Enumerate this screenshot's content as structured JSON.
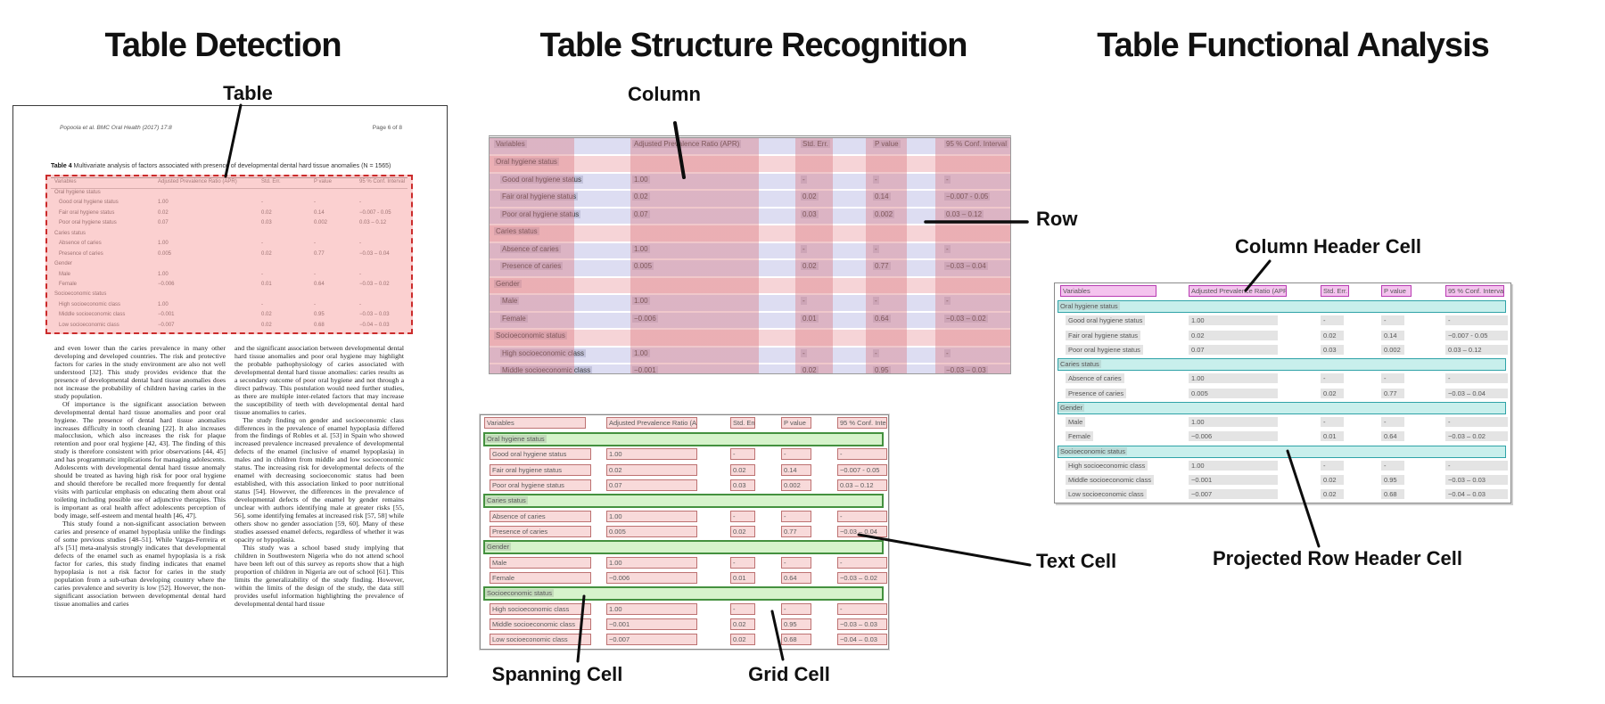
{
  "titles": {
    "detection": "Table Detection",
    "structure": "Table Structure Recognition",
    "functional": "Table Functional Analysis"
  },
  "callouts": {
    "table": "Table",
    "column": "Column",
    "row": "Row",
    "spanning_cell": "Spanning Cell",
    "grid_cell": "Grid Cell",
    "text_cell": "Text Cell",
    "column_header_cell": "Column Header Cell",
    "projected_row_header_cell": "Projected Row Header Cell"
  },
  "document": {
    "header_left": "Popoola et al. BMC Oral Health  (2017) 17:8",
    "header_right": "Page 6 of 8",
    "caption_label": "Table 4",
    "caption_text": " Multivariate analysis of factors associated with presence of developmental dental hard tissue anomalies (N = 1565)",
    "body_col1": [
      "and even lower than the caries prevalence in many other developing and developed countries. The risk and protective factors for caries in the study environment are also not well understood [32]. This study provides evidence that the presence of developmental dental hard tissue anomalies does not increase the probability of children having caries in the study population.",
      "Of importance is the significant association between developmental dental hard tissue anomalies and poor oral hygiene. The presence of dental hard tissue anomalies increases difficulty in tooth cleaning [22]. It also increases malocclusion, which also increases the risk for plaque retention and poor oral hygiene [42, 43]. The finding of this study is therefore consistent with prior observations [44, 45] and has programmatic implications for managing adolescents. Adolescents with developmental dental hard tissue anomaly should be treated as having high risk for poor oral hygiene and should therefore be recalled more frequently for dental visits with particular emphasis on educating them about oral toileting including possible use of adjunctive therapies. This is important as oral health affect adolescents perception of body image, self-esteem and mental health [46, 47].",
      "This study found a non-significant association between caries and presence of enamel hypoplasia unlike the findings of some previous studies [48–51]. While Vargas-Ferreira et al's [51] meta-analysis strongly indicates that developmental defects of the enamel such as enamel hypoplasia is a risk factor for caries, this study finding indicates that enamel hypoplasia is not a risk factor for caries in the study population from a sub-urban developing country where the caries prevalence and severity is low [52]. However, the non-significant association between developmental dental hard tissue anomalies and caries"
    ],
    "body_col2": [
      "and the significant association between developmental dental hard tissue anomalies and poor oral hygiene may highlight the probable pathophysiology of caries associated with developmental dental hard tissue anomalies: caries results as a secondary outcome of poor oral hygiene and not through a direct pathway. This postulation would need further studies, as there are multiple inter-related factors that may increase the susceptibility of teeth with developmental dental hard tissue anomalies to caries.",
      "The study finding on gender and socioeconomic class differences in the prevalence of enamel hypoplasia differed from the findings of Robles et al. [53] in Spain who showed increased prevalence increased prevalence of developmental defects of the enamel (inclusive of enamel hypoplasia) in males and in children from middle and low socioeconomic status. The increasing risk for developmental defects of the enamel with decreasing socioeconomic status had been established, with this association linked to poor nutritional status [54]. However, the differences in the prevalence of developmental defects of the enamel by gender remains unclear with authors identifying male at greater risks [55, 56], some identifying females at increased risk [57, 58] while others show no gender association [59, 60]. Many of these studies assessed enamel defects, regardless of whether it was opacity or hypoplasia.",
      "This study was a school based study implying that children in Southwestern Nigeria who do not attend school have been left out of this survey as reports show that a high proportion of children in Nigeria are out of school [61]. This limits the generalizability of the study finding. However, within the limits of the design of the study, the data still provides useful information highlighting the prevalence of developmental dental hard tissue"
    ]
  },
  "table": {
    "columns": [
      "Variables",
      "Adjusted Prevalence Ratio (APR)",
      "Std. Err.",
      "P value",
      "95 % Conf. Interval"
    ],
    "rows": [
      {
        "t": "s",
        "v": "Oral hygiene status"
      },
      {
        "t": "d",
        "v": "Good oral hygiene status",
        "c": [
          "1.00",
          "-",
          "-",
          "-"
        ]
      },
      {
        "t": "d",
        "v": "Fair oral hygiene status",
        "c": [
          "0.02",
          "0.02",
          "0.14",
          "−0.007 - 0.05"
        ]
      },
      {
        "t": "d",
        "v": "Poor oral hygiene status",
        "c": [
          "0.07",
          "0.03",
          "0.002",
          "0.03 – 0.12"
        ]
      },
      {
        "t": "s",
        "v": "Caries status"
      },
      {
        "t": "d",
        "v": "Absence of caries",
        "c": [
          "1.00",
          "-",
          "-",
          "-"
        ]
      },
      {
        "t": "d",
        "v": "Presence of caries",
        "c": [
          "0.005",
          "0.02",
          "0.77",
          "−0.03 – 0.04"
        ]
      },
      {
        "t": "s",
        "v": "Gender"
      },
      {
        "t": "d",
        "v": "Male",
        "c": [
          "1.00",
          "-",
          "-",
          "-"
        ]
      },
      {
        "t": "d",
        "v": "Female",
        "c": [
          "−0.006",
          "0.01",
          "0.64",
          "−0.03 – 0.02"
        ]
      },
      {
        "t": "s",
        "v": "Socioeconomic status"
      },
      {
        "t": "d",
        "v": "High socioeconomic class",
        "c": [
          "1.00",
          "-",
          "-",
          "-"
        ]
      },
      {
        "t": "d",
        "v": "Middle socioeconomic class",
        "c": [
          "−0.001",
          "0.02",
          "0.95",
          "−0.03 – 0.03"
        ]
      },
      {
        "t": "d",
        "v": "Low socioeconomic class",
        "c": [
          "−0.007",
          "0.02",
          "0.68",
          "−0.04 – 0.03"
        ]
      }
    ]
  },
  "colors": {
    "detection_overlay_border": "#cb2b2b",
    "detection_overlay_fill": "#f79696",
    "row_band": "#a2a2db",
    "column_band": "#db7c83",
    "spanning_cell_border": "#44913f",
    "grid_cell_border": "#bd7272",
    "column_header_border": "#b83cb2",
    "projected_row_header_border": "#2fa3a8"
  }
}
